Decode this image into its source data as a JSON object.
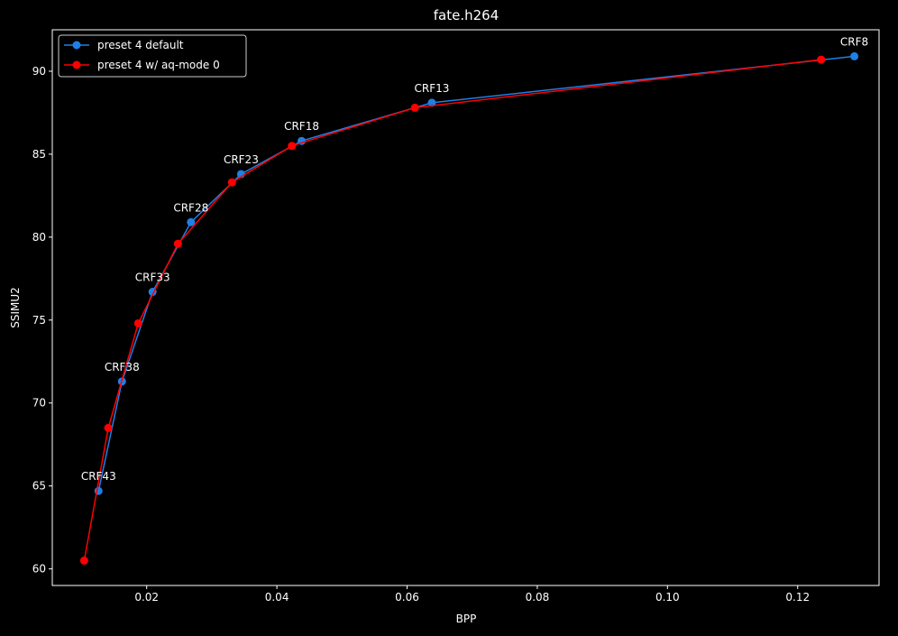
{
  "chart_data": {
    "type": "line",
    "title": "fate.h264",
    "xlabel": "BPP",
    "ylabel": "SSIMU2",
    "xlim": [
      0.0055,
      0.1325
    ],
    "ylim": [
      59.0,
      92.5
    ],
    "xticks": [
      0.02,
      0.04,
      0.06,
      0.08,
      0.1,
      0.12
    ],
    "xtick_labels": [
      "0.02",
      "0.04",
      "0.06",
      "0.08",
      "0.10",
      "0.12"
    ],
    "yticks": [
      60,
      65,
      70,
      75,
      80,
      85,
      90
    ],
    "ytick_labels": [
      "60",
      "65",
      "70",
      "75",
      "80",
      "85",
      "90"
    ],
    "grid": false,
    "legend_position": "top-left",
    "background": "#000000",
    "series": [
      {
        "name": "preset 4 default",
        "color": "#1f7fe6",
        "x": [
          0.1287,
          0.0638,
          0.0438,
          0.0345,
          0.0268,
          0.0209,
          0.0162,
          0.0126
        ],
        "y": [
          90.9,
          88.1,
          85.8,
          83.8,
          80.9,
          76.7,
          71.3,
          64.7
        ]
      },
      {
        "name": "preset 4 w/ aq-mode 0",
        "color": "#ff0000",
        "x": [
          0.1236,
          0.0612,
          0.0423,
          0.0331,
          0.0248,
          0.0187,
          0.0141,
          0.0104
        ],
        "y": [
          90.7,
          87.8,
          85.5,
          83.3,
          79.6,
          74.8,
          68.5,
          60.5
        ]
      }
    ],
    "annotations": [
      {
        "text": "CRF8",
        "x": 0.1287,
        "y": 90.9
      },
      {
        "text": "CRF13",
        "x": 0.0638,
        "y": 88.1
      },
      {
        "text": "CRF18",
        "x": 0.0438,
        "y": 85.8
      },
      {
        "text": "CRF23",
        "x": 0.0345,
        "y": 83.8
      },
      {
        "text": "CRF28",
        "x": 0.0268,
        "y": 80.9
      },
      {
        "text": "CRF33",
        "x": 0.0209,
        "y": 76.7
      },
      {
        "text": "CRF38",
        "x": 0.0162,
        "y": 71.3
      },
      {
        "text": "CRF43",
        "x": 0.0126,
        "y": 64.7
      }
    ]
  }
}
